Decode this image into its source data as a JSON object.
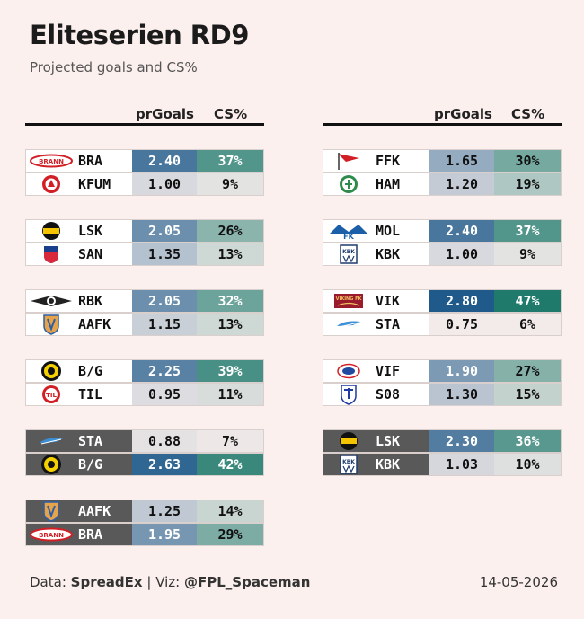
{
  "title": "Eliteserien RD9",
  "subtitle": "Projected goals and CS%",
  "headers": {
    "goals": "prGoals",
    "cs": "CS%"
  },
  "footer": {
    "data_label": "Data:",
    "data_source": "SpreadEx",
    "sep": "|",
    "viz_label": "Viz:",
    "viz_author": "@FPL_Spaceman",
    "date": "14-05-2026"
  },
  "colors": {
    "goals_high": "#1f5a8a",
    "goals_low": "#f2ebea",
    "cs_high": "#1f7a6c",
    "cs_low": "#f2ebea"
  },
  "chart_data": {
    "type": "table",
    "columns": [
      "team",
      "prGoals",
      "CS%"
    ],
    "matches": [
      {
        "col": 0,
        "rows": [
          {
            "team": "BRA",
            "goals": "2.40",
            "cs": "37%",
            "logo": "brann-logo",
            "style": "light"
          },
          {
            "team": "KFUM",
            "goals": "1.00",
            "cs": "9%",
            "logo": "kfum-logo",
            "style": "light"
          }
        ]
      },
      {
        "col": 0,
        "rows": [
          {
            "team": "LSK",
            "goals": "2.05",
            "cs": "26%",
            "logo": "lsk-logo",
            "style": "light"
          },
          {
            "team": "SAN",
            "goals": "1.35",
            "cs": "13%",
            "logo": "sandefjord-logo",
            "style": "light"
          }
        ]
      },
      {
        "col": 0,
        "rows": [
          {
            "team": "RBK",
            "goals": "2.05",
            "cs": "32%",
            "logo": "rbk-logo",
            "style": "light"
          },
          {
            "team": "AAFK",
            "goals": "1.15",
            "cs": "13%",
            "logo": "aafk-logo",
            "style": "light"
          }
        ]
      },
      {
        "col": 0,
        "rows": [
          {
            "team": "B/G",
            "goals": "2.25",
            "cs": "39%",
            "logo": "bodo-glimt-logo",
            "style": "light"
          },
          {
            "team": "TIL",
            "goals": "0.95",
            "cs": "11%",
            "logo": "tromso-logo",
            "style": "light"
          }
        ]
      },
      {
        "col": 0,
        "rows": [
          {
            "team": "STA",
            "goals": "0.88",
            "cs": "7%",
            "logo": "stabaek-logo",
            "style": "dark"
          },
          {
            "team": "B/G",
            "goals": "2.63",
            "cs": "42%",
            "logo": "bodo-glimt-logo",
            "style": "dark"
          }
        ]
      },
      {
        "col": 0,
        "rows": [
          {
            "team": "AAFK",
            "goals": "1.25",
            "cs": "14%",
            "logo": "aafk-logo",
            "style": "dark"
          },
          {
            "team": "BRA",
            "goals": "1.95",
            "cs": "29%",
            "logo": "brann-logo",
            "style": "dark"
          }
        ]
      },
      {
        "col": 1,
        "rows": [
          {
            "team": "FFK",
            "goals": "1.65",
            "cs": "30%",
            "logo": "fredrikstad-logo",
            "style": "light"
          },
          {
            "team": "HAM",
            "goals": "1.20",
            "cs": "19%",
            "logo": "ham-kam-logo",
            "style": "light"
          }
        ]
      },
      {
        "col": 1,
        "rows": [
          {
            "team": "MOL",
            "goals": "2.40",
            "cs": "37%",
            "logo": "molde-logo",
            "style": "light"
          },
          {
            "team": "KBK",
            "goals": "1.00",
            "cs": "9%",
            "logo": "kbk-logo",
            "style": "light"
          }
        ]
      },
      {
        "col": 1,
        "rows": [
          {
            "team": "VIK",
            "goals": "2.80",
            "cs": "47%",
            "logo": "viking-logo",
            "style": "light"
          },
          {
            "team": "STA",
            "goals": "0.75",
            "cs": "6%",
            "logo": "stabaek-logo",
            "style": "light"
          }
        ]
      },
      {
        "col": 1,
        "rows": [
          {
            "team": "VIF",
            "goals": "1.90",
            "cs": "27%",
            "logo": "valerenga-logo",
            "style": "light"
          },
          {
            "team": "S08",
            "goals": "1.30",
            "cs": "15%",
            "logo": "sarpsborg-logo",
            "style": "light"
          }
        ]
      },
      {
        "col": 1,
        "rows": [
          {
            "team": "LSK",
            "goals": "2.30",
            "cs": "36%",
            "logo": "lsk-logo",
            "style": "dark"
          },
          {
            "team": "KBK",
            "goals": "1.03",
            "cs": "10%",
            "logo": "kbk-logo",
            "style": "dark"
          }
        ]
      }
    ]
  }
}
